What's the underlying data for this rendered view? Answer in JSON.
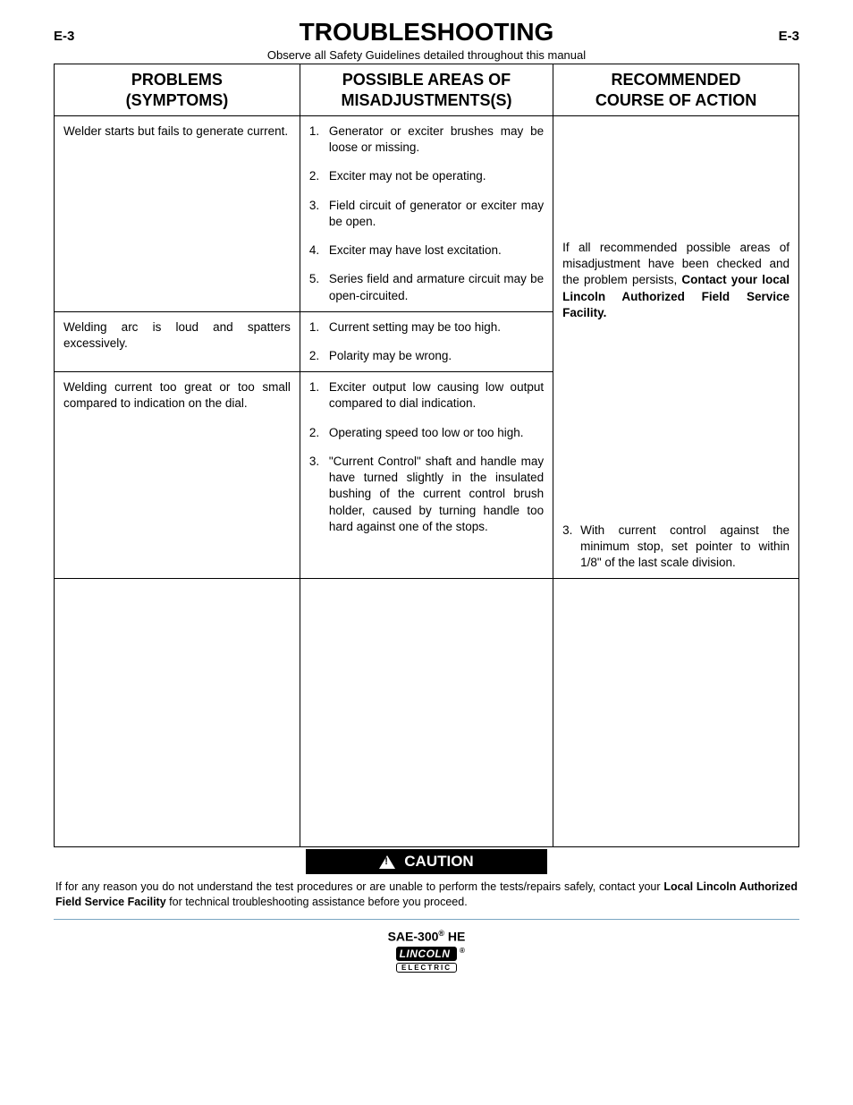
{
  "page": {
    "page_num_left": "E-3",
    "page_num_right": "E-3",
    "title": "TROUBLESHOOTING",
    "subtitle": "Observe all Safety Guidelines detailed throughout this manual"
  },
  "table": {
    "headers": {
      "col1_line1": "PROBLEMS",
      "col1_line2": "(SYMPTOMS)",
      "col2_line1": "POSSIBLE AREAS OF",
      "col2_line2": "MISADJUSTMENTS(S)",
      "col3_line1": "RECOMMENDED",
      "col3_line2": "COURSE OF ACTION"
    },
    "rows": [
      {
        "problem": "Welder starts but fails to generate current.",
        "causes": [
          "Generator or exciter brushes may be loose or missing.",
          "Exciter may not be operating.",
          "Field circuit of generator or exciter may be open.",
          "Exciter may have lost excitation.",
          "Series field and armature circuit may be open-circuited."
        ]
      },
      {
        "problem": "Welding arc is loud and spatters excessively.",
        "causes": [
          "Current setting may be too high.",
          "Polarity may be wrong."
        ]
      },
      {
        "problem": "Welding current too great or too small compared to indication on the dial.",
        "causes": [
          "Exciter output low causing low output compared to dial indication.",
          "Operating speed too low or too high.",
          "\"Current Control\" shaft and handle may have turned slightly in the insulated bushing of the current control brush holder, caused by turning handle too hard against one of the stops."
        ],
        "action_num": "3.",
        "action_text": "With current control against the minimum stop, set pointer to within 1/8\" of the last scale division."
      }
    ],
    "recommended_general_pre": "If all recommended possible areas of misadjustment have been checked and the problem persists, ",
    "recommended_general_bold": "Contact your local Lincoln Authorized Field Service Facility."
  },
  "caution": {
    "label": "CAUTION",
    "text_pre": "If for any reason you do not understand the test procedures or are unable to perform the tests/repairs safely, contact your ",
    "text_bold": "Local  Lincoln Authorized Field Service Facility",
    "text_post": " for technical troubleshooting assistance before you proceed."
  },
  "footer": {
    "model_pre": "SAE-300",
    "model_sup": "®",
    "model_post": " HE",
    "logo_top": "LINCOLN",
    "logo_bottom": "ELECTRIC"
  }
}
